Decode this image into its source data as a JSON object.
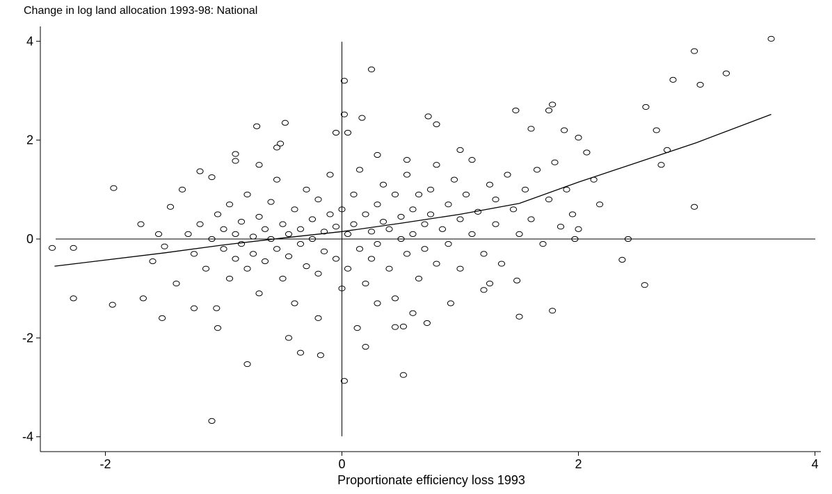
{
  "chart_data": {
    "type": "scatter",
    "title": "Change in log land allocation 1993-98: National",
    "x_label": "Proportionate efficiency loss 1993",
    "xlim": [
      -2.55,
      4.05
    ],
    "ylim": [
      -4.3,
      4.3
    ],
    "xticks": [
      -2,
      0,
      2,
      4
    ],
    "yticks": [
      -4,
      -2,
      0,
      2,
      4
    ],
    "reference_x": 0,
    "reference_y": 0,
    "color": "#000000",
    "points": {
      "x": [
        3.63,
        2.98,
        3.25,
        3.03,
        2.8,
        0.25,
        0.02,
        -1.1,
        0.02,
        0.52,
        -0.8,
        -0.45,
        -0.35,
        -0.18,
        2.98,
        2.56,
        2.42,
        2.37,
        -2.45,
        -2.27,
        -2.27,
        -1.93,
        -1.94,
        -1.52,
        -1.68,
        0.02,
        2.57,
        2.66,
        2.7,
        2.75,
        1.78,
        1.75,
        1.47,
        0.73,
        0.8,
        -0.72,
        -0.48,
        0.17,
        1.6,
        2.0,
        1.88,
        2.07,
        2.13,
        2.18,
        2.0,
        1.97,
        1.78,
        1.5,
        1.48,
        1.2,
        0.92,
        0.72,
        0.45,
        0.52,
        0.2,
        0.13,
        -1.05,
        -1.06,
        -1.25,
        -1.1,
        -1.2,
        -0.9,
        -0.9,
        -0.55,
        -0.52,
        -0.05,
        0.05,
        0.3,
        0.55,
        -1.3,
        -1.25,
        -1.2,
        -1.15,
        -1.1,
        -1.05,
        -1.0,
        -1.0,
        -0.95,
        -0.95,
        -0.9,
        -0.9,
        -0.85,
        -0.85,
        -0.8,
        -0.8,
        -0.75,
        -0.75,
        -0.7,
        -0.7,
        -0.65,
        -0.65,
        -0.6,
        -0.6,
        -0.55,
        -0.55,
        -0.5,
        -0.5,
        -0.45,
        -0.45,
        -0.4,
        -0.4,
        -0.35,
        -0.35,
        -0.3,
        -0.3,
        -0.25,
        -0.25,
        -0.2,
        -0.2,
        -0.15,
        -0.15,
        -0.1,
        -0.1,
        -0.05,
        -0.05,
        0.0,
        0.0,
        0.05,
        0.05,
        0.1,
        0.1,
        0.15,
        0.15,
        0.2,
        0.2,
        0.25,
        0.25,
        0.3,
        0.3,
        0.35,
        0.35,
        0.4,
        0.4,
        0.45,
        0.45,
        0.5,
        0.5,
        0.55,
        0.55,
        0.6,
        0.6,
        0.65,
        0.65,
        0.7,
        0.7,
        0.75,
        0.75,
        0.8,
        0.8,
        0.85,
        0.9,
        0.9,
        0.95,
        1.0,
        1.0,
        1.05,
        1.1,
        1.1,
        1.15,
        1.2,
        1.25,
        1.3,
        1.3,
        1.35,
        1.4,
        1.45,
        1.5,
        1.55,
        1.6,
        1.65,
        1.7,
        1.75,
        1.8,
        1.85,
        1.9,
        1.95,
        -1.4,
        -1.45,
        -1.55,
        -1.6,
        -1.7,
        -1.35,
        -1.5,
        1.0,
        0.6,
        -0.2,
        -0.7,
        1.25,
        0.3
      ],
      "y": [
        4.05,
        3.8,
        3.35,
        3.12,
        3.22,
        3.43,
        3.2,
        -3.68,
        -2.87,
        -2.75,
        -2.53,
        -2.0,
        -2.3,
        -2.35,
        0.65,
        -0.93,
        0,
        -0.42,
        -0.18,
        -0.18,
        -1.2,
        1.03,
        -1.33,
        -1.6,
        -1.2,
        2.52,
        2.67,
        2.2,
        1.5,
        1.8,
        2.72,
        2.6,
        2.6,
        2.48,
        2.32,
        2.28,
        2.35,
        2.45,
        2.23,
        2.05,
        2.2,
        1.75,
        1.2,
        0.7,
        0.2,
        0.0,
        -1.45,
        -1.57,
        -0.84,
        -1.03,
        -1.3,
        -1.7,
        -1.78,
        -1.77,
        -2.18,
        -1.8,
        -1.8,
        -1.4,
        -1.4,
        1.25,
        1.37,
        1.72,
        1.58,
        1.85,
        1.93,
        2.15,
        2.15,
        1.7,
        1.6,
        0.1,
        -0.3,
        0.3,
        -0.6,
        0.0,
        0.5,
        -0.2,
        0.2,
        -0.8,
        0.7,
        0.1,
        -0.4,
        0.35,
        -0.1,
        0.9,
        -0.6,
        0.05,
        -0.3,
        0.45,
        -1.1,
        0.2,
        -0.45,
        0.75,
        0.0,
        -0.2,
        1.2,
        0.3,
        -0.8,
        0.1,
        -0.35,
        0.6,
        -1.3,
        0.2,
        -0.1,
        1.0,
        -0.55,
        0.4,
        0.0,
        -0.7,
        0.8,
        0.15,
        -0.25,
        1.3,
        0.5,
        -0.4,
        0.25,
        -1.0,
        0.6,
        0.1,
        -0.6,
        0.9,
        0.3,
        -0.2,
        1.4,
        0.5,
        -0.9,
        0.15,
        -0.4,
        0.7,
        -0.1,
        1.1,
        0.35,
        -0.6,
        0.2,
        0.9,
        -1.2,
        0.45,
        0.0,
        -0.3,
        1.3,
        0.6,
        0.1,
        -0.8,
        0.9,
        0.3,
        -0.2,
        1.0,
        0.5,
        -0.5,
        1.5,
        0.2,
        0.7,
        -0.1,
        1.2,
        0.4,
        -0.6,
        0.9,
        0.1,
        1.6,
        0.55,
        -0.3,
        1.1,
        0.3,
        0.8,
        -0.5,
        1.3,
        0.6,
        0.1,
        1.0,
        0.4,
        1.4,
        -0.1,
        0.8,
        1.55,
        0.25,
        1.0,
        0.5,
        -0.9,
        0.65,
        0.1,
        -0.45,
        0.3,
        1.0,
        -0.15,
        1.8,
        -1.5,
        -1.6,
        1.5,
        -0.9,
        -1.3
      ]
    },
    "fit": {
      "x": [
        -2.43,
        -1.5,
        -1.0,
        -0.5,
        0,
        0.5,
        1.0,
        1.5,
        2.0,
        2.5,
        3.0,
        3.63
      ],
      "y": [
        -0.55,
        -0.28,
        -0.12,
        0.02,
        0.15,
        0.32,
        0.5,
        0.72,
        1.15,
        1.55,
        1.95,
        2.52
      ]
    }
  }
}
